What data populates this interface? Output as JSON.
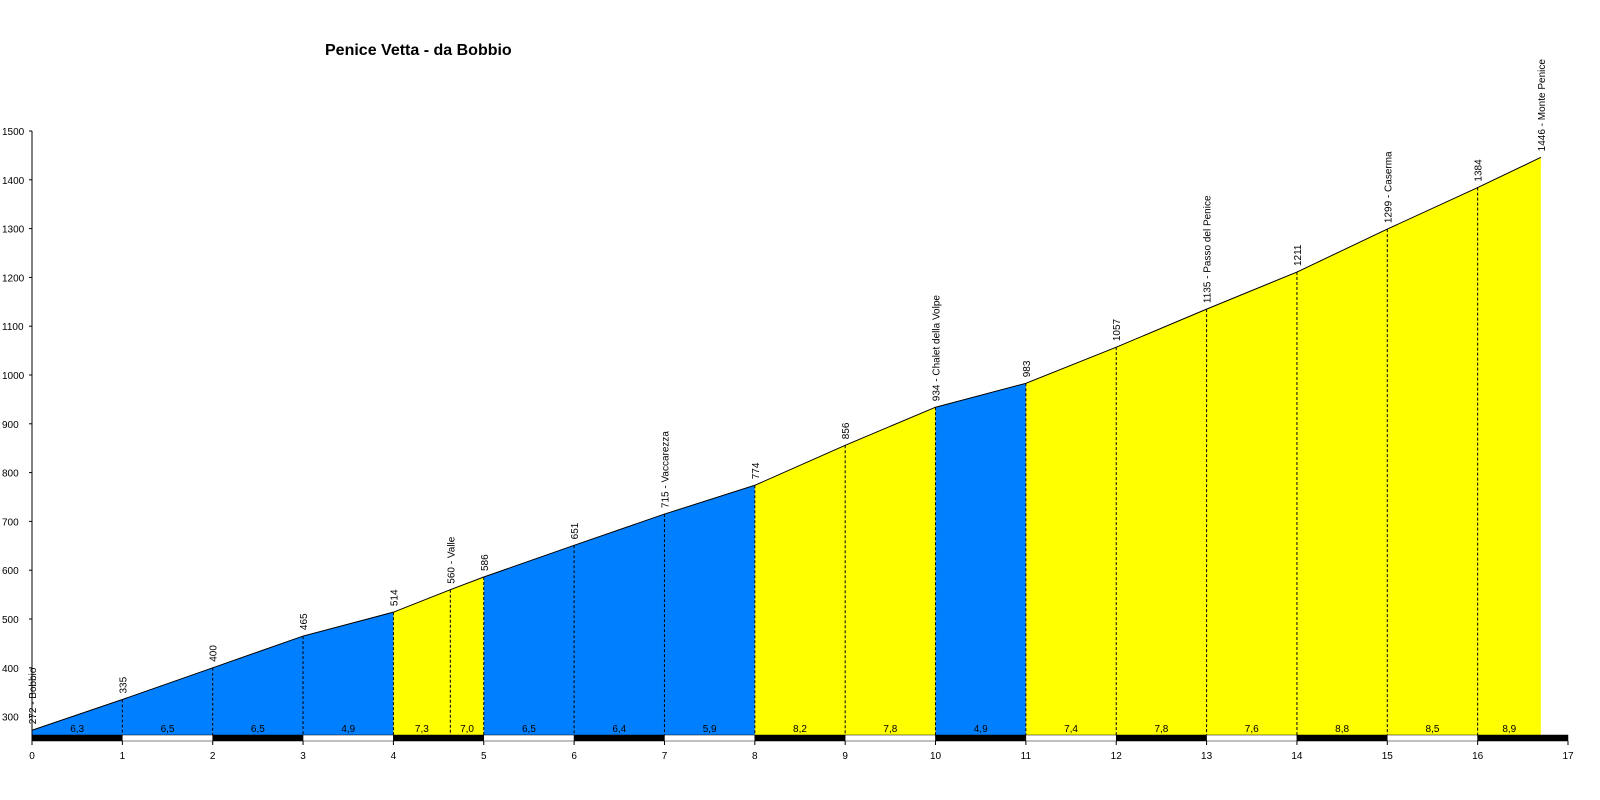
{
  "chart_data": {
    "type": "area",
    "title": "Penice Vetta - da Bobbio",
    "xlabel": "",
    "ylabel": "",
    "xlim": [
      0,
      17
    ],
    "ylim": [
      250,
      1500
    ],
    "x_ticks": [
      0,
      1,
      2,
      3,
      4,
      5,
      6,
      7,
      8,
      9,
      10,
      11,
      12,
      13,
      14,
      15,
      16,
      17
    ],
    "y_ticks": [
      300,
      400,
      500,
      600,
      700,
      800,
      900,
      1000,
      1100,
      1200,
      1300,
      1400,
      1500
    ],
    "profile": [
      {
        "x": 0,
        "y": 272,
        "label": "272 - Bobbio"
      },
      {
        "x": 1,
        "y": 335,
        "label": "335"
      },
      {
        "x": 2,
        "y": 400,
        "label": "400"
      },
      {
        "x": 3,
        "y": 465,
        "label": "465"
      },
      {
        "x": 4,
        "y": 514,
        "label": "514"
      },
      {
        "x": 4.63,
        "y": 560,
        "label": "560 - Valle"
      },
      {
        "x": 5,
        "y": 586,
        "label": "586"
      },
      {
        "x": 6,
        "y": 651,
        "label": "651"
      },
      {
        "x": 7,
        "y": 715,
        "label": "715 - Vaccarezza"
      },
      {
        "x": 8,
        "y": 774,
        "label": "774"
      },
      {
        "x": 9,
        "y": 856,
        "label": "856"
      },
      {
        "x": 10,
        "y": 934,
        "label": "934 - Chalet della Volpe"
      },
      {
        "x": 11,
        "y": 983,
        "label": "983"
      },
      {
        "x": 12,
        "y": 1057,
        "label": "1057"
      },
      {
        "x": 13,
        "y": 1135,
        "label": "1135 - Passo del Penice"
      },
      {
        "x": 14,
        "y": 1211,
        "label": "1211"
      },
      {
        "x": 15,
        "y": 1299,
        "label": "1299 - Caserma"
      },
      {
        "x": 16,
        "y": 1384,
        "label": "1384"
      },
      {
        "x": 16.7,
        "y": 1446,
        "label": "1446 - Monte Penice"
      }
    ],
    "segments": [
      {
        "from": 0,
        "to": 1,
        "gradient": "6,3",
        "color": "#0080ff"
      },
      {
        "from": 1,
        "to": 2,
        "gradient": "6,5",
        "color": "#0080ff"
      },
      {
        "from": 2,
        "to": 3,
        "gradient": "6,5",
        "color": "#0080ff"
      },
      {
        "from": 3,
        "to": 4,
        "gradient": "4,9",
        "color": "#0080ff"
      },
      {
        "from": 4,
        "to": 4.63,
        "gradient": "7,3",
        "color": "#ffff00"
      },
      {
        "from": 4.63,
        "to": 5,
        "gradient": "7,0",
        "color": "#ffff00"
      },
      {
        "from": 5,
        "to": 6,
        "gradient": "6,5",
        "color": "#0080ff"
      },
      {
        "from": 6,
        "to": 7,
        "gradient": "6,4",
        "color": "#0080ff"
      },
      {
        "from": 7,
        "to": 8,
        "gradient": "5,9",
        "color": "#0080ff"
      },
      {
        "from": 8,
        "to": 9,
        "gradient": "8,2",
        "color": "#ffff00"
      },
      {
        "from": 9,
        "to": 10,
        "gradient": "7,8",
        "color": "#ffff00"
      },
      {
        "from": 10,
        "to": 11,
        "gradient": "4,9",
        "color": "#0080ff"
      },
      {
        "from": 11,
        "to": 12,
        "gradient": "7,4",
        "color": "#ffff00"
      },
      {
        "from": 12,
        "to": 13,
        "gradient": "7,8",
        "color": "#ffff00"
      },
      {
        "from": 13,
        "to": 14,
        "gradient": "7,6",
        "color": "#ffff00"
      },
      {
        "from": 14,
        "to": 15,
        "gradient": "8,8",
        "color": "#ffff00"
      },
      {
        "from": 15,
        "to": 16,
        "gradient": "8,5",
        "color": "#ffff00"
      },
      {
        "from": 16,
        "to": 16.7,
        "gradient": "8,9",
        "color": "#ffff00"
      }
    ],
    "grid": false,
    "legend": "none"
  }
}
